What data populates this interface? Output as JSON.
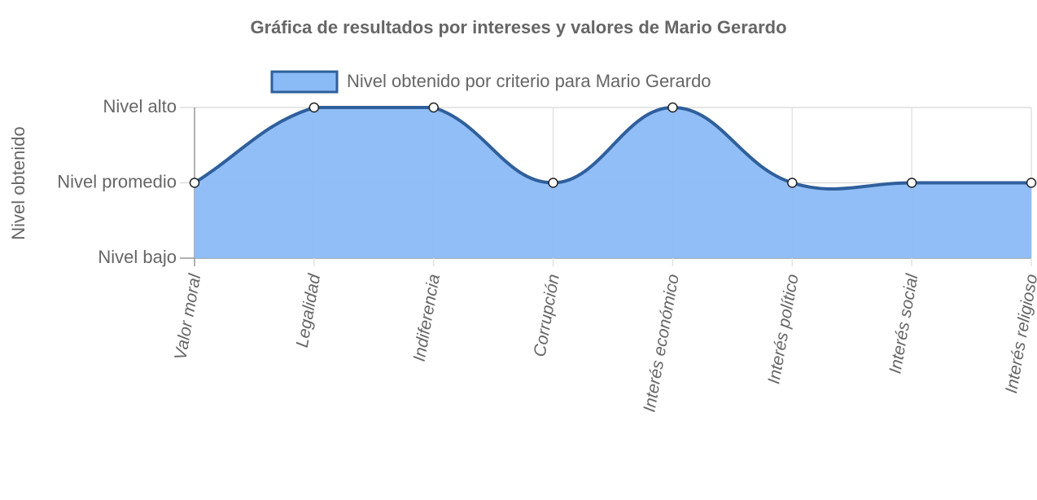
{
  "chart_data": {
    "type": "area",
    "title": "Gráfica de resultados por intereses y valores de Mario Gerardo",
    "y_label": "Nivel obtenido",
    "categories": [
      "Valor moral",
      "Legalidad",
      "Indiferencia",
      "Corrupción",
      "Interés económico",
      "Interés político",
      "Interés social",
      "Interés religioso"
    ],
    "series": [
      {
        "name": "Nivel obtenido por criterio para Mario Gerardo",
        "color": "#2f5f9c",
        "fill_color": "#8bbbf6",
        "values": [
          2,
          3,
          3,
          2,
          3,
          2,
          2,
          2
        ]
      }
    ],
    "ylim": [
      1,
      3
    ],
    "yticks": [
      {
        "value": 1,
        "label": "Nivel bajo"
      },
      {
        "value": 2,
        "label": "Nivel promedio"
      },
      {
        "value": 3,
        "label": "Nivel alto"
      }
    ],
    "grid": true,
    "legend": "top"
  }
}
